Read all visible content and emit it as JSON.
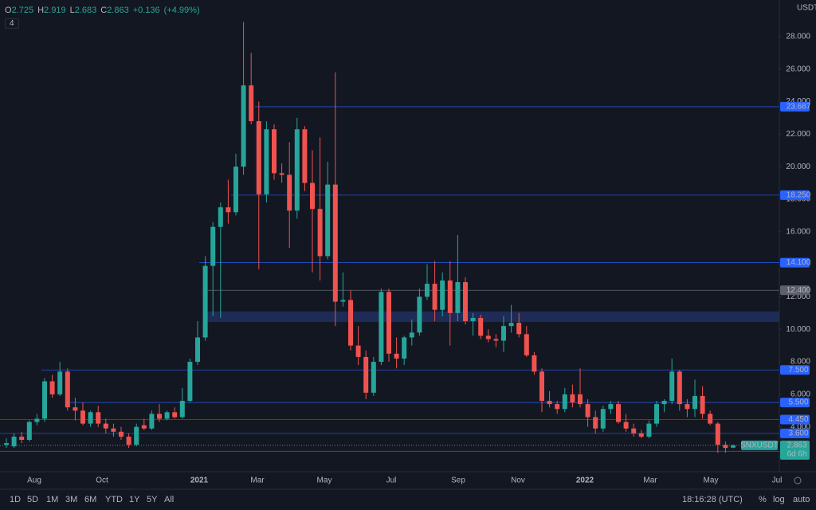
{
  "chart_data": {
    "type": "candlestick",
    "symbol": "SNXUSDT",
    "currency": "USDT",
    "indicators": "4",
    "up_color": "#26a69a",
    "down_color": "#ef5350",
    "ohlc_prefixes": [
      "O",
      "H",
      "L",
      "C"
    ],
    "change": "+0.136",
    "change_pct": "(+4.99%)",
    "countdown": "6d 6h",
    "ylim": [
      1.24,
      30.25
    ],
    "yticks": [
      {
        "value": 4,
        "label": "4.000"
      },
      {
        "value": 6,
        "label": "6.000"
      },
      {
        "value": 8,
        "label": "8.000"
      },
      {
        "value": 10,
        "label": "10.000"
      },
      {
        "value": 12,
        "label": "12.000"
      },
      {
        "value": 14,
        "label": "14.000"
      },
      {
        "value": 16,
        "label": "16.000"
      },
      {
        "value": 18,
        "label": "18.000"
      },
      {
        "value": 20,
        "label": "20.000"
      },
      {
        "value": 22,
        "label": "22.000"
      },
      {
        "value": 24,
        "label": "24.000"
      },
      {
        "value": 26,
        "label": "26.000"
      },
      {
        "value": 28,
        "label": "28.000"
      }
    ],
    "xtick_labels": [
      "Aug",
      "Oct",
      "2021",
      "Mar",
      "May",
      "Jul",
      "Sep",
      "Nov",
      "2022",
      "Mar",
      "May",
      "Jul"
    ],
    "price_lines": [
      {
        "value": 23.687,
        "label": "23.687"
      },
      {
        "value": 18.25,
        "label": "18.250"
      },
      {
        "value": 14.1,
        "label": "14.100"
      },
      {
        "value": 12.4,
        "label": "12.400"
      },
      {
        "value": 7.5,
        "label": "7.500"
      },
      {
        "value": 5.5,
        "label": "5.500"
      },
      {
        "value": 4.45,
        "label": "4.450"
      },
      {
        "value": 3.6,
        "label": "3.600"
      },
      {
        "value": 2.5,
        "label": "2.500"
      }
    ],
    "zone": [
      10.45,
      11.1
    ],
    "candles": [
      [
        2.9,
        3.3,
        2.7,
        3.0
      ],
      [
        2.8,
        3.6,
        2.7,
        3.4
      ],
      [
        3.4,
        3.7,
        3.0,
        3.2
      ],
      [
        3.2,
        4.4,
        3.1,
        4.3
      ],
      [
        4.3,
        4.8,
        4.1,
        4.5
      ],
      [
        4.5,
        7.0,
        4.3,
        6.8
      ],
      [
        6.8,
        7.2,
        5.8,
        6.0
      ],
      [
        6.0,
        8.0,
        5.9,
        7.4
      ],
      [
        7.4,
        7.6,
        5.0,
        5.2
      ],
      [
        5.2,
        5.8,
        4.4,
        5.0
      ],
      [
        5.0,
        5.5,
        4.1,
        4.2
      ],
      [
        4.2,
        5.0,
        4.0,
        4.9
      ],
      [
        4.9,
        5.3,
        4.0,
        4.2
      ],
      [
        4.2,
        4.5,
        3.6,
        3.9
      ],
      [
        3.9,
        4.2,
        3.4,
        3.7
      ],
      [
        3.7,
        4.0,
        3.2,
        3.4
      ],
      [
        3.4,
        3.6,
        2.7,
        2.9
      ],
      [
        2.9,
        4.2,
        2.8,
        4.0
      ],
      [
        4.1,
        4.5,
        3.8,
        3.9
      ],
      [
        3.9,
        5.0,
        3.8,
        4.8
      ],
      [
        4.8,
        5.4,
        4.3,
        4.5
      ],
      [
        4.5,
        5.0,
        4.4,
        4.9
      ],
      [
        4.9,
        5.2,
        4.5,
        4.6
      ],
      [
        4.6,
        6.4,
        4.5,
        5.6
      ],
      [
        5.6,
        8.2,
        5.5,
        8.0
      ],
      [
        8.0,
        10.5,
        7.8,
        9.5
      ],
      [
        9.5,
        14.5,
        9.3,
        13.9
      ],
      [
        13.9,
        16.6,
        10.8,
        16.3
      ],
      [
        16.3,
        17.8,
        10.7,
        17.5
      ],
      [
        17.5,
        19.2,
        16.5,
        17.2
      ],
      [
        17.2,
        20.8,
        17.0,
        20.0
      ],
      [
        20.0,
        28.9,
        19.5,
        25.0
      ],
      [
        25.0,
        27.0,
        22.6,
        22.8
      ],
      [
        22.8,
        24.0,
        13.7,
        18.3
      ],
      [
        18.3,
        22.8,
        17.8,
        22.3
      ],
      [
        22.3,
        22.6,
        19.2,
        19.6
      ],
      [
        19.6,
        20.2,
        19.0,
        19.5
      ],
      [
        19.5,
        21.5,
        15.0,
        17.3
      ],
      [
        17.3,
        23.0,
        16.8,
        22.3
      ],
      [
        22.3,
        22.5,
        18.5,
        19.0
      ],
      [
        19.0,
        21.0,
        13.5,
        17.4
      ],
      [
        17.4,
        21.8,
        13.0,
        14.5
      ],
      [
        14.5,
        20.3,
        14.3,
        18.9
      ],
      [
        18.9,
        25.8,
        10.2,
        11.7
      ],
      [
        11.7,
        13.5,
        11.4,
        11.8
      ],
      [
        11.8,
        12.4,
        8.7,
        9.0
      ],
      [
        9.0,
        10.2,
        7.8,
        8.3
      ],
      [
        8.3,
        8.7,
        5.7,
        6.1
      ],
      [
        6.1,
        8.3,
        5.9,
        8.0
      ],
      [
        8.0,
        12.5,
        7.8,
        12.3
      ],
      [
        12.3,
        12.5,
        8.0,
        8.5
      ],
      [
        8.5,
        9.5,
        7.6,
        8.2
      ],
      [
        8.2,
        9.6,
        7.8,
        9.5
      ],
      [
        9.5,
        10.6,
        9.0,
        9.8
      ],
      [
        9.8,
        12.5,
        9.6,
        12.0
      ],
      [
        12.0,
        14.0,
        11.8,
        12.8
      ],
      [
        12.8,
        14.2,
        10.5,
        11.2
      ],
      [
        11.2,
        13.5,
        10.8,
        13.0
      ],
      [
        13.0,
        14.2,
        9.0,
        11.0
      ],
      [
        11.0,
        15.8,
        10.5,
        12.9
      ],
      [
        12.9,
        13.2,
        10.3,
        10.5
      ],
      [
        10.5,
        11.0,
        9.6,
        10.7
      ],
      [
        10.7,
        10.9,
        9.4,
        9.6
      ],
      [
        9.6,
        10.0,
        9.2,
        9.4
      ],
      [
        9.4,
        9.7,
        8.9,
        9.3
      ],
      [
        9.3,
        10.8,
        8.6,
        10.2
      ],
      [
        10.2,
        11.5,
        9.8,
        10.4
      ],
      [
        10.4,
        11.0,
        9.5,
        9.7
      ],
      [
        9.7,
        10.2,
        8.3,
        8.4
      ],
      [
        8.4,
        8.6,
        7.2,
        7.4
      ],
      [
        7.4,
        7.6,
        4.9,
        5.6
      ],
      [
        5.6,
        6.2,
        5.2,
        5.4
      ],
      [
        5.4,
        5.6,
        4.8,
        5.1
      ],
      [
        5.1,
        6.4,
        4.9,
        6.0
      ],
      [
        6.0,
        6.6,
        5.2,
        5.5
      ],
      [
        6.0,
        7.6,
        5.2,
        5.4
      ],
      [
        5.4,
        5.7,
        4.0,
        4.6
      ],
      [
        4.6,
        5.0,
        3.6,
        3.9
      ],
      [
        3.9,
        5.3,
        3.7,
        5.1
      ],
      [
        5.1,
        5.6,
        4.8,
        5.4
      ],
      [
        5.4,
        5.6,
        4.2,
        4.3
      ],
      [
        4.3,
        4.8,
        3.7,
        3.9
      ],
      [
        3.9,
        4.2,
        3.4,
        3.6
      ],
      [
        3.6,
        3.8,
        3.3,
        3.4
      ],
      [
        3.4,
        4.4,
        3.3,
        4.2
      ],
      [
        4.2,
        5.6,
        4.0,
        5.4
      ],
      [
        5.4,
        5.7,
        4.9,
        5.6
      ],
      [
        5.6,
        8.2,
        5.4,
        7.4
      ],
      [
        7.4,
        7.5,
        5.0,
        5.4
      ],
      [
        5.4,
        5.7,
        4.6,
        5.1
      ],
      [
        5.1,
        6.9,
        4.6,
        5.9
      ],
      [
        5.9,
        6.5,
        4.5,
        4.8
      ],
      [
        4.8,
        5.0,
        4.1,
        4.2
      ],
      [
        4.2,
        4.3,
        2.4,
        2.9
      ],
      [
        2.9,
        3.1,
        2.4,
        2.7
      ],
      [
        2.725,
        2.919,
        2.683,
        2.863
      ]
    ]
  },
  "toolbar": {
    "ranges": [
      "1D",
      "5D",
      "1M",
      "3M",
      "6M",
      "YTD",
      "1Y",
      "5Y",
      "All"
    ],
    "clock": "18:16:28 (UTC)",
    "percent": "%",
    "log": "log",
    "auto": "auto"
  }
}
